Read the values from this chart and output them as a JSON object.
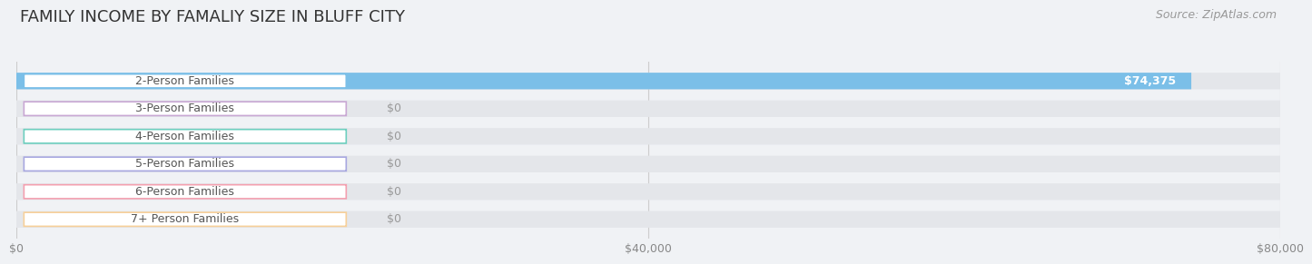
{
  "title": "FAMILY INCOME BY FAMALIY SIZE IN BLUFF CITY",
  "source": "Source: ZipAtlas.com",
  "categories": [
    "2-Person Families",
    "3-Person Families",
    "4-Person Families",
    "5-Person Families",
    "6-Person Families",
    "7+ Person Families"
  ],
  "values": [
    74375,
    0,
    0,
    0,
    0,
    0
  ],
  "bar_colors": [
    "#7bbfe8",
    "#c9a8d4",
    "#6dcfbf",
    "#a8a8e0",
    "#f4a0b0",
    "#f7d09a"
  ],
  "xlim": [
    0,
    80000
  ],
  "xticks": [
    0,
    40000,
    80000
  ],
  "xtick_labels": [
    "$0",
    "$40,000",
    "$80,000"
  ],
  "background_color": "#f0f2f5",
  "bar_bg_color": "#e4e6ea",
  "title_fontsize": 13,
  "source_fontsize": 9,
  "label_fontsize": 9
}
